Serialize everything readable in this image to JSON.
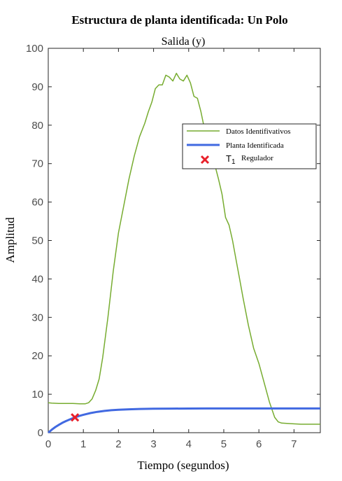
{
  "chart_data": {
    "type": "line",
    "title": "Estructura de planta identificada: Un Polo",
    "subtitle": "Salida (y)",
    "xlabel": "Tiempo (segundos)",
    "ylabel": "Amplitud",
    "xlim": [
      0,
      7.75
    ],
    "ylim": [
      0,
      100
    ],
    "xticks": [
      0,
      1,
      2,
      3,
      4,
      5,
      6,
      7
    ],
    "yticks": [
      0,
      10,
      20,
      30,
      40,
      50,
      60,
      70,
      80,
      90,
      100
    ],
    "grid": false,
    "legend_position": "upper-right",
    "series": [
      {
        "name": "Datos Identifivativos",
        "color": "#77ac30",
        "x": [
          0,
          0.1,
          0.3,
          0.5,
          0.7,
          0.9,
          1.05,
          1.15,
          1.25,
          1.35,
          1.45,
          1.55,
          1.7,
          1.85,
          2.0,
          2.15,
          2.3,
          2.45,
          2.6,
          2.75,
          2.85,
          2.95,
          3.05,
          3.15,
          3.25,
          3.35,
          3.45,
          3.55,
          3.65,
          3.75,
          3.85,
          3.95,
          4.05,
          4.15,
          4.25,
          4.35,
          4.45,
          4.55,
          4.65,
          4.75,
          4.85,
          4.95,
          5.05,
          5.15,
          5.25,
          5.35,
          5.45,
          5.55,
          5.7,
          5.85,
          6.0,
          6.15,
          6.3,
          6.45,
          6.55,
          6.65,
          6.8,
          7.0,
          7.2,
          7.4,
          7.6,
          7.75
        ],
        "y": [
          7.8,
          7.7,
          7.6,
          7.6,
          7.6,
          7.5,
          7.5,
          7.8,
          8.8,
          11,
          14,
          19.5,
          30,
          42,
          52,
          59,
          66,
          72,
          77,
          80.5,
          83.5,
          86,
          89.5,
          90.5,
          90.5,
          93,
          92.5,
          91.5,
          93.5,
          92,
          91.5,
          93,
          91,
          87.5,
          87,
          83.5,
          79,
          76,
          72,
          69.5,
          66,
          62,
          56,
          54,
          50,
          45,
          40,
          35,
          28,
          22,
          18,
          13,
          8,
          4,
          2.8,
          2.5,
          2.4,
          2.3,
          2.2,
          2.2,
          2.2,
          2.2
        ]
      },
      {
        "name": "Planta Identificada",
        "color": "#4169e1",
        "steady_state": 6.3,
        "time_constant": 0.76,
        "x": [
          0,
          0.1,
          0.2,
          0.3,
          0.4,
          0.5,
          0.6,
          0.76,
          0.9,
          1.0,
          1.2,
          1.4,
          1.6,
          1.8,
          2.0,
          2.3,
          2.6,
          3.0,
          3.5,
          4.0,
          4.5,
          5.0,
          5.5,
          6.0,
          6.5,
          7.0,
          7.5,
          7.75
        ],
        "y": [
          0,
          0.78,
          1.46,
          2.04,
          2.56,
          3.0,
          3.39,
          3.98,
          4.4,
          4.66,
          5.1,
          5.42,
          5.66,
          5.84,
          5.96,
          6.09,
          6.17,
          6.23,
          6.27,
          6.29,
          6.3,
          6.3,
          6.3,
          6.3,
          6.3,
          6.3,
          6.3,
          6.3
        ]
      }
    ],
    "marker": {
      "name": "T1 Regulador",
      "symbol_base": "T",
      "symbol_sub": "1",
      "label": "Regulador",
      "x": 0.76,
      "y": 3.98,
      "color": "#e8202a"
    }
  }
}
